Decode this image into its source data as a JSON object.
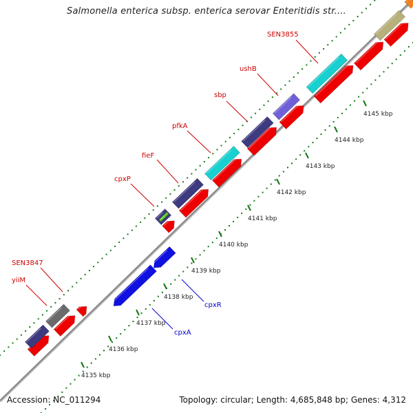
{
  "title": "Salmonella enterica subsp. enterica serovar Enteritidis str....",
  "footer": {
    "accession": "Accession: NC_011294",
    "topology": "Topology: circular;",
    "length": "Length: 4,685,848 bp;",
    "genes": "Genes: 4,312"
  },
  "ticks": [
    {
      "label": "4135 kbp"
    },
    {
      "label": "4136 kbp"
    },
    {
      "label": "4137 kbp"
    },
    {
      "label": "4138 kbp"
    },
    {
      "label": "4139 kbp"
    },
    {
      "label": "4140 kbp"
    },
    {
      "label": "4141 kbp"
    },
    {
      "label": "4142 kbp"
    },
    {
      "label": "4143 kbp"
    },
    {
      "label": "4144 kbp"
    },
    {
      "label": "4145 kbp"
    }
  ],
  "gene_labels": [
    {
      "text": "SEN3855",
      "color": "#cc0000"
    },
    {
      "text": "ushB",
      "color": "#cc0000"
    },
    {
      "text": "sbp",
      "color": "#cc0000"
    },
    {
      "text": "pfkA",
      "color": "#cc0000"
    },
    {
      "text": "fieF",
      "color": "#cc0000"
    },
    {
      "text": "cpxP",
      "color": "#cc0000"
    },
    {
      "text": "SEN3847",
      "color": "#cc0000"
    },
    {
      "text": "yiiM",
      "color": "#cc0000"
    },
    {
      "text": "cpxR",
      "color": "#0000cc"
    },
    {
      "text": "cpxA",
      "color": "#0000cc"
    }
  ],
  "colors": {
    "forward_cds": "#ee0000",
    "reverse_cds": "#1010e0",
    "cog_purple": "#3d3a80",
    "cog_cyan": "#18d0d0",
    "cog_lavender": "#7060d8",
    "cog_gray": "#6a6a6a",
    "cog_khaki": "#b8b07a",
    "cog_green": "#66cc22",
    "backbone": "#888888",
    "tick": "#117711"
  }
}
